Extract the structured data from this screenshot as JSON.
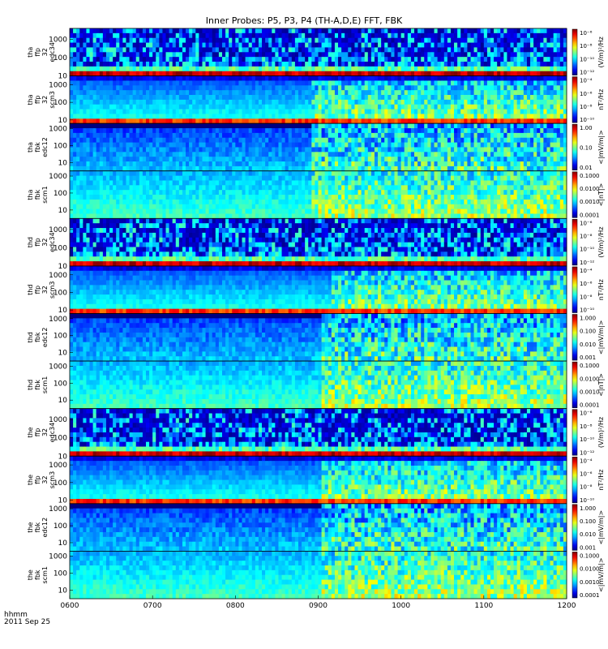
{
  "title": "Inner Probes: P5, P3, P4 (TH-A,D,E) FFT, FBK",
  "footer": {
    "line1": "hhmm",
    "line2": "2011 Sep 25"
  },
  "x_ticks": [
    "0600",
    "0700",
    "0800",
    "0900",
    "1000",
    "1100",
    "1200"
  ],
  "chart_data": [
    {
      "type": "heatmap",
      "panel": "tha ffp 32 edc34",
      "ylabels": [
        "tha",
        "ffp",
        "32",
        "edc34"
      ],
      "yticks": [
        "10",
        "100",
        "1000"
      ],
      "ylog": [
        1,
        3.6
      ],
      "colorbar": {
        "label": "(V/m)²/Hz",
        "ticks": [
          "10⁻⁶",
          "10⁻⁸",
          "10⁻¹⁰",
          "10⁻¹²"
        ]
      },
      "kind": "edc34",
      "onset": 0.02
    },
    {
      "type": "heatmap",
      "panel": "tha ffp 32 scm3",
      "ylabels": [
        "tha",
        "ffp",
        "32",
        "scm3"
      ],
      "yticks": [
        "10",
        "100",
        "1000"
      ],
      "ylog": [
        0.8,
        3.5
      ],
      "colorbar": {
        "label": "nT²/Hz",
        "ticks": [
          "10⁻⁴",
          "10⁻⁶",
          "10⁻⁸",
          "10⁻¹⁰"
        ]
      },
      "kind": "scm3",
      "onset": 0.48
    },
    {
      "type": "heatmap",
      "panel": "tha fbk edc12",
      "ylabels": [
        "tha",
        "fbk",
        "edc12"
      ],
      "yticks": [
        "10",
        "100",
        "1000"
      ],
      "ylog": [
        0.5,
        3.3
      ],
      "colorbar": {
        "label": "<|mV/m|>",
        "ticks": [
          "1.00",
          "0.10",
          "0.01"
        ]
      },
      "kind": "edc12",
      "onset": 0.48
    },
    {
      "type": "heatmap",
      "panel": "tha fbk scm1",
      "ylabels": [
        "tha",
        "fbk",
        "scm1"
      ],
      "yticks": [
        "10",
        "100",
        "1000"
      ],
      "ylog": [
        0.5,
        3.3
      ],
      "colorbar": {
        "label": "<|nT|>",
        "ticks": [
          "0.1000",
          "0.0100",
          "0.0010",
          "0.0001"
        ]
      },
      "kind": "scm1",
      "onset": 0.48
    },
    {
      "type": "heatmap",
      "panel": "thd ffp 32 edc34",
      "ylabels": [
        "thd",
        "ffp",
        "32",
        "edc34"
      ],
      "yticks": [
        "10",
        "100",
        "1000"
      ],
      "ylog": [
        1,
        3.6
      ],
      "colorbar": {
        "label": "(V/m)²/Hz",
        "ticks": [
          "10⁻⁶",
          "10⁻⁸",
          "10⁻¹⁰",
          "10⁻¹²"
        ]
      },
      "kind": "edc34",
      "onset": 0.52
    },
    {
      "type": "heatmap",
      "panel": "thd ffp 32 scm3",
      "ylabels": [
        "thd",
        "ffp",
        "32",
        "scm3"
      ],
      "yticks": [
        "10",
        "100",
        "1000"
      ],
      "ylog": [
        0.8,
        3.5
      ],
      "colorbar": {
        "label": "nT²/Hz",
        "ticks": [
          "10⁻⁴",
          "10⁻⁶",
          "10⁻⁸",
          "10⁻¹⁰"
        ]
      },
      "kind": "scm3",
      "onset": 0.52
    },
    {
      "type": "heatmap",
      "panel": "thd fbk edc12",
      "ylabels": [
        "thd",
        "fbk",
        "edc12"
      ],
      "yticks": [
        "10",
        "100",
        "1000"
      ],
      "ylog": [
        0.5,
        3.3
      ],
      "colorbar": {
        "label": "<|mV/m|>",
        "ticks": [
          "1.000",
          "0.100",
          "0.010",
          "0.001"
        ]
      },
      "kind": "edc12",
      "onset": 0.5
    },
    {
      "type": "heatmap",
      "panel": "thd fbk scm1",
      "ylabels": [
        "thd",
        "fbk",
        "scm1"
      ],
      "yticks": [
        "10",
        "100",
        "1000"
      ],
      "ylog": [
        0.5,
        3.3
      ],
      "colorbar": {
        "label": "<|nT|>",
        "ticks": [
          "0.1000",
          "0.0100",
          "0.0010",
          "0.0001"
        ]
      },
      "kind": "scm1",
      "onset": 0.5
    },
    {
      "type": "heatmap",
      "panel": "the ffp 32 edc34",
      "ylabels": [
        "the",
        "ffp",
        "32",
        "edc34"
      ],
      "yticks": [
        "10",
        "100",
        "1000"
      ],
      "ylog": [
        1,
        3.6
      ],
      "colorbar": {
        "label": "(V/m)²/Hz",
        "ticks": [
          "10⁻⁶",
          "10⁻⁸",
          "10⁻¹⁰",
          "10⁻¹²"
        ]
      },
      "kind": "edc34",
      "onset": 0.5
    },
    {
      "type": "heatmap",
      "panel": "the ffp 32 scm3",
      "ylabels": [
        "the",
        "ffp",
        "32",
        "scm3"
      ],
      "yticks": [
        "10",
        "100",
        "1000"
      ],
      "ylog": [
        0.8,
        3.5
      ],
      "colorbar": {
        "label": "nT²/Hz",
        "ticks": [
          "10⁻⁴",
          "10⁻⁶",
          "10⁻⁸",
          "10⁻¹⁰"
        ]
      },
      "kind": "scm3",
      "onset": 0.5
    },
    {
      "type": "heatmap",
      "panel": "the fbk edc12",
      "ylabels": [
        "the",
        "fbk",
        "edc12"
      ],
      "yticks": [
        "10",
        "100",
        "1000"
      ],
      "ylog": [
        0.5,
        3.3
      ],
      "colorbar": {
        "label": "<|mV/m|>",
        "ticks": [
          "1.000",
          "0.100",
          "0.010",
          "0.001"
        ]
      },
      "kind": "edc12",
      "onset": 0.5
    },
    {
      "type": "heatmap",
      "panel": "the fbk scm1",
      "ylabels": [
        "the",
        "fbk",
        "scm1"
      ],
      "yticks": [
        "10",
        "100",
        "1000"
      ],
      "ylog": [
        0.5,
        3.3
      ],
      "colorbar": {
        "label": "<|mV/m|>",
        "ticks": [
          "0.1000",
          "0.0100",
          "0.0010",
          "0.0001"
        ]
      },
      "kind": "scm1",
      "onset": 0.5
    }
  ]
}
